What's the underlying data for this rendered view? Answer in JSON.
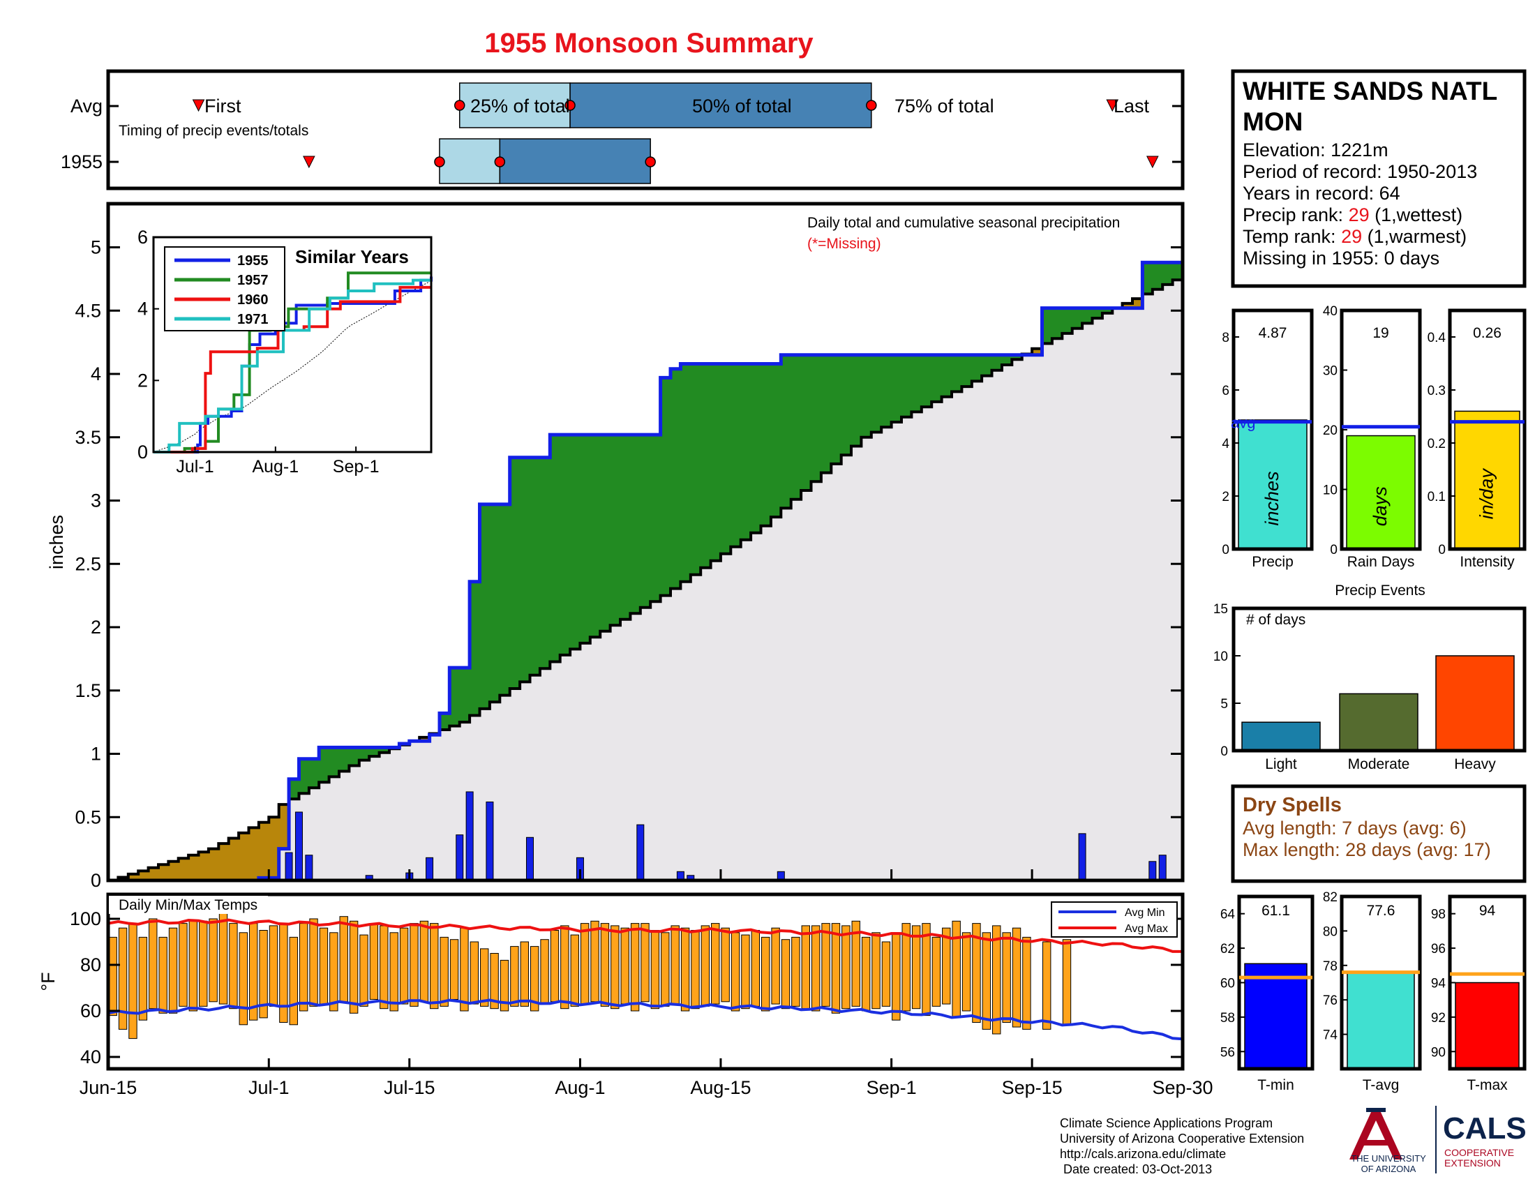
{
  "title": "1955 Monsoon Summary",
  "colors": {
    "title_red": "#e8141c",
    "cum_blue": "#1220e6",
    "avg_black": "#000000",
    "deficit_gold": "#b8860b",
    "surplus_green": "#228b22",
    "area_gray": "#e9e7ea",
    "light_blue": "#add8e6",
    "steel_blue": "#4682b4",
    "daily_bar_blue": "#1220e6",
    "temp_orange": "#ffa31a",
    "min_blue": "#1a2fe0",
    "max_red": "#ee1111",
    "turquoise": "#40e0d0",
    "lawn_green": "#7cfc00",
    "gold": "#ffd700",
    "dry_brown": "#8b4513",
    "light_ev": "#1a7fa8",
    "moderate_ev": "#556b2f",
    "heavy_ev": "#ff4500",
    "avg_line": "#ffa31a",
    "ua_navy": "#0c234b",
    "ua_red": "#ab0520"
  },
  "timing": {
    "avg_label": "Avg",
    "year_label": "1955",
    "first_label": "First",
    "last_label": "Last",
    "q25_label": "25% of total",
    "q50_label": "50% of total",
    "q75_label": "75% of total",
    "subtitle": "Timing of precip events/totals",
    "avg": {
      "first": 9,
      "q25": 35,
      "q50": 46,
      "q75": 76,
      "last": 100
    },
    "year": {
      "first": 20,
      "q25": 33,
      "q50": 39,
      "q75": 54,
      "last": 104
    }
  },
  "main": {
    "ylabel": "inches",
    "annotation": "Daily total and cumulative seasonal precipitation",
    "missing_note": "(*=Missing)",
    "yticks": [
      "0",
      "0.5",
      "1",
      "1.5",
      "2",
      "2.5",
      "3",
      "3.5",
      "4",
      "4.5",
      "5"
    ]
  },
  "inset": {
    "title": "Similar Years",
    "yticks": [
      "0",
      "2",
      "4",
      "6"
    ],
    "xticks": [
      "Jul-1",
      "Aug-1",
      "Sep-1"
    ],
    "legend": [
      {
        "name": "1955",
        "color": "#1220e6"
      },
      {
        "name": "1957",
        "color": "#228b22"
      },
      {
        "name": "1960",
        "color": "#ee1111"
      },
      {
        "name": "1971",
        "color": "#20c0c0"
      }
    ]
  },
  "temps": {
    "title": "Daily Min/Max Temps",
    "ylabel": "°F",
    "yticks": [
      "40",
      "60",
      "80",
      "100"
    ],
    "legend_min": "Avg Min",
    "legend_max": "Avg Max"
  },
  "xaxis": {
    "ticks": [
      {
        "day": 0,
        "label": "Jun-15"
      },
      {
        "day": 16,
        "label": "Jul-1"
      },
      {
        "day": 30,
        "label": "Jul-15"
      },
      {
        "day": 47,
        "label": "Aug-1"
      },
      {
        "day": 61,
        "label": "Aug-15"
      },
      {
        "day": 78,
        "label": "Sep-1"
      },
      {
        "day": 92,
        "label": "Sep-15"
      },
      {
        "day": 107,
        "label": "Sep-30"
      }
    ]
  },
  "station": {
    "name_line1": "WHITE SANDS NATL",
    "name_line2": "MON",
    "elevation": "Elevation: 1221m",
    "period": "Period of record: 1950-2013",
    "years": "Years in record: 64",
    "precip_rank_prefix": "Precip rank: ",
    "precip_rank_value": "29",
    "precip_rank_suffix": " (1,wettest)",
    "temp_rank_prefix": "Temp rank: ",
    "temp_rank_value": "29",
    "temp_rank_suffix": " (1,warmest)",
    "missing": "Missing in 1955: 0 days"
  },
  "stat_bars": [
    {
      "key": "precip",
      "label": "Precip",
      "unit": "inches",
      "value_text": "4.87",
      "value": 4.87,
      "avg": 4.8,
      "ymax": 9,
      "ticks": [
        "0",
        "2",
        "4",
        "6",
        "8"
      ],
      "avg_label": "avg",
      "color": "#40e0d0"
    },
    {
      "key": "raindays",
      "label": "Rain Days",
      "unit": "days",
      "value_text": "19",
      "value": 19,
      "avg": 20.5,
      "ymax": 40,
      "ticks": [
        "0",
        "10",
        "20",
        "30",
        "40"
      ],
      "color": "#7cfc00"
    },
    {
      "key": "intensity",
      "label": "Intensity",
      "unit": "in/day",
      "value_text": "0.26",
      "value": 0.26,
      "avg": 0.24,
      "ymax": 0.45,
      "ticks": [
        "0",
        "0.1",
        "0.2",
        "0.3",
        "0.4"
      ],
      "color": "#ffd700"
    }
  ],
  "events": {
    "title": "Precip Events",
    "ylabel": "# of days",
    "yticks": [
      "0",
      "5",
      "10",
      "15"
    ],
    "categories": [
      "Light",
      "Moderate",
      "Heavy"
    ],
    "values": [
      3,
      6,
      10
    ]
  },
  "dry_spells": {
    "title": "Dry Spells",
    "avg_length": "Avg length: 7 days (avg: 6)",
    "max_length": "Max length: 28 days (avg: 17)"
  },
  "temp_bars": [
    {
      "key": "tmin",
      "label": "T-min",
      "value_text": "61.1",
      "value": 61.1,
      "avg": 60.3,
      "ymin": 55,
      "ymax": 65,
      "ticks": [
        "56",
        "58",
        "60",
        "62",
        "64"
      ],
      "color": "#0000ff"
    },
    {
      "key": "tavg",
      "label": "T-avg",
      "value_text": "77.6",
      "value": 77.6,
      "avg": 77.6,
      "ymin": 72,
      "ymax": 82,
      "ticks": [
        "74",
        "76",
        "78",
        "80",
        "82"
      ],
      "color": "#40e0d0"
    },
    {
      "key": "tmax",
      "label": "T-max",
      "value_text": "94",
      "value": 94,
      "avg": 94.5,
      "ymin": 89,
      "ymax": 99,
      "ticks": [
        "90",
        "92",
        "94",
        "96",
        "98"
      ],
      "color": "#ff0000"
    }
  ],
  "footer": {
    "line1": "Climate Science Applications Program",
    "line2": "University of Arizona Cooperative Extension",
    "line3": "http://cals.arizona.edu/climate",
    "line4": " Date created: 03-Oct-2013",
    "ua_line1": "THE UNIVERSITY",
    "ua_line2": "OF ARIZONA",
    "cals": "CALS",
    "cals_line1": "COOPERATIVE",
    "cals_line2": "EXTENSION"
  },
  "chart_data": [
    {
      "type": "area",
      "title": "Daily total and cumulative seasonal precipitation",
      "xlabel": "",
      "ylabel": "inches",
      "ylim": [
        0,
        5.35
      ],
      "x_range": [
        "Jun-15",
        "Sep-30"
      ],
      "series": [
        {
          "name": "1955",
          "step_x": [
            0,
            15,
            17,
            18,
            19,
            20,
            21,
            29,
            30,
            32,
            33,
            34,
            36,
            37,
            38,
            40,
            41,
            43,
            44,
            45,
            48,
            49,
            51,
            52,
            55,
            56,
            57,
            58,
            67,
            93,
            94,
            103,
            104,
            107
          ],
          "step_y": [
            0,
            0.02,
            0.25,
            0.8,
            0.96,
            0.96,
            1.05,
            1.08,
            1.1,
            1.15,
            1.32,
            1.68,
            2.36,
            2.97,
            2.97,
            3.34,
            3.34,
            3.34,
            3.52,
            3.52,
            3.52,
            3.52,
            3.52,
            3.52,
            3.97,
            4.04,
            4.08,
            4.08,
            4.15,
            4.52,
            4.52,
            4.88,
            4.88,
            4.88
          ]
        },
        {
          "name": "Avg",
          "x": [
            0,
            10,
            16,
            17,
            25,
            35,
            45,
            55,
            65,
            75,
            85,
            92,
            100,
            107
          ],
          "y": [
            0,
            0.25,
            0.5,
            0.6,
            0.95,
            1.25,
            1.78,
            2.25,
            2.8,
            3.5,
            3.9,
            4.2,
            4.52,
            4.78
          ]
        }
      ],
      "daily_bars": {
        "name": "daily total",
        "days": [
          18,
          19,
          20,
          26,
          30,
          32,
          35,
          36,
          38,
          42,
          47,
          53,
          57,
          58,
          67,
          97,
          104,
          105
        ],
        "values": [
          0.22,
          0.54,
          0.2,
          0.04,
          0.06,
          0.18,
          0.36,
          0.7,
          0.62,
          0.34,
          0.18,
          0.44,
          0.07,
          0.04,
          0.07,
          0.37,
          0.15,
          0.2
        ]
      }
    },
    {
      "type": "line",
      "title": "Similar Years",
      "ylim": [
        0,
        6
      ],
      "x_range": [
        "Jun-15",
        "Sep-30"
      ],
      "series": [
        {
          "name": "1955",
          "x": [
            0,
            17,
            18,
            21,
            30,
            34,
            37,
            41,
            47,
            55,
            67,
            93,
            103,
            107
          ],
          "y": [
            0,
            0.2,
            0.8,
            1.0,
            1.15,
            2.4,
            3.0,
            3.3,
            3.6,
            4.1,
            4.15,
            4.5,
            4.8,
            4.9
          ]
        },
        {
          "name": "1957",
          "x": [
            0,
            12,
            20,
            25,
            31,
            37,
            45,
            52,
            67,
            75,
            84,
            107
          ],
          "y": [
            0,
            0.1,
            0.3,
            1.2,
            1.6,
            3.4,
            3.5,
            4.0,
            4.3,
            5.0,
            5.0,
            5.0
          ]
        },
        {
          "name": "1960",
          "x": [
            0,
            15,
            20,
            22,
            32,
            40,
            48,
            58,
            67,
            72,
            80,
            95,
            107
          ],
          "y": [
            0,
            0.1,
            2.2,
            2.8,
            2.8,
            2.9,
            3.4,
            3.5,
            4.0,
            4.2,
            4.2,
            4.6,
            4.6
          ]
        },
        {
          "name": "1971",
          "x": [
            0,
            6,
            10,
            20,
            25,
            34,
            40,
            50,
            60,
            68,
            75,
            85,
            100,
            107
          ],
          "y": [
            0,
            0.2,
            0.8,
            1.0,
            1.2,
            2.4,
            2.8,
            3.4,
            4.0,
            4.3,
            4.5,
            4.7,
            4.8,
            4.8
          ]
        }
      ]
    },
    {
      "type": "bar",
      "title": "Daily Min/Max Temps",
      "ylabel": "°F",
      "ylim": [
        35,
        107
      ],
      "note": "floating bars per day, Jun-15 to Sep-30; missing days have no bar",
      "min_values": [
        58,
        52,
        48,
        56,
        61,
        59,
        59,
        62,
        60,
        62,
        64,
        63,
        61,
        54,
        56,
        57,
        62,
        55,
        54,
        60,
        62,
        63,
        60,
        64,
        59,
        62,
        65,
        61,
        60,
        63,
        62,
        64,
        61,
        62,
        65,
        60,
        63,
        62,
        61,
        60,
        62,
        62,
        60,
        63,
        64,
        61,
        62,
        63,
        64,
        62,
        61,
        63,
        60,
        64,
        61,
        62,
        63,
        60,
        61,
        62,
        63,
        64,
        60,
        61,
        62,
        60,
        63,
        61,
        62,
        61,
        60,
        62,
        59,
        61,
        62,
        60,
        61,
        62,
        56,
        60,
        61,
        58,
        62,
        63,
        57,
        60,
        55,
        52,
        50,
        55,
        53,
        52,
        null,
        52,
        null,
        54,
        null,
        null,
        null,
        null,
        null,
        null,
        null,
        null,
        null,
        null,
        null
      ],
      "max_values": [
        92,
        96,
        98,
        92,
        100,
        92,
        96,
        98,
        99,
        99,
        100,
        103,
        98,
        94,
        98,
        95,
        97,
        98,
        92,
        98,
        100,
        96,
        94,
        101,
        99,
        93,
        98,
        97,
        94,
        96,
        98,
        99,
        98,
        92,
        91,
        96,
        90,
        87,
        85,
        82,
        88,
        90,
        88,
        91,
        95,
        97,
        93,
        98,
        99,
        98,
        97,
        96,
        98,
        98,
        95,
        94,
        97,
        96,
        95,
        97,
        98,
        96,
        94,
        93,
        95,
        92,
        96,
        91,
        92,
        97,
        97,
        98,
        98,
        97,
        99,
        92,
        94,
        90,
        94,
        98,
        97,
        98,
        92,
        96,
        99,
        94,
        98,
        94,
        97,
        94,
        96,
        92,
        null,
        90,
        null,
        91,
        null,
        null,
        null,
        null,
        null,
        null,
        null,
        null,
        null,
        null,
        null
      ],
      "series": [
        {
          "name": "Avg Min",
          "x": [
            0,
            10,
            20,
            30,
            40,
            50,
            60,
            70,
            80,
            90,
            100,
            107
          ],
          "y": [
            59,
            61,
            63,
            64,
            64,
            63,
            62,
            61,
            59,
            56,
            53,
            48
          ]
        },
        {
          "name": "Avg Max",
          "x": [
            0,
            10,
            20,
            30,
            40,
            50,
            60,
            70,
            80,
            90,
            100,
            107
          ],
          "y": [
            98,
            99,
            98,
            97,
            96,
            95,
            95,
            94,
            93,
            91,
            89,
            86
          ]
        }
      ]
    },
    {
      "type": "bar",
      "title": "",
      "categories": [
        "Precip"
      ],
      "values": [
        4.87
      ],
      "avg": 4.8,
      "ylim": [
        0,
        9
      ]
    },
    {
      "type": "bar",
      "title": "",
      "categories": [
        "Rain Days"
      ],
      "values": [
        19
      ],
      "avg": 20.5,
      "ylim": [
        0,
        40
      ]
    },
    {
      "type": "bar",
      "title": "",
      "categories": [
        "Intensity"
      ],
      "values": [
        0.26
      ],
      "avg": 0.24,
      "ylim": [
        0,
        0.45
      ]
    },
    {
      "type": "bar",
      "title": "Precip Events",
      "ylabel": "# of days",
      "categories": [
        "Light",
        "Moderate",
        "Heavy"
      ],
      "values": [
        3,
        6,
        10
      ],
      "ylim": [
        0,
        15
      ]
    },
    {
      "type": "bar",
      "title": "",
      "categories": [
        "T-min"
      ],
      "values": [
        61.1
      ],
      "avg": 60.3,
      "ylim": [
        55,
        65
      ]
    },
    {
      "type": "bar",
      "title": "",
      "categories": [
        "T-avg"
      ],
      "values": [
        77.6
      ],
      "avg": 77.6,
      "ylim": [
        72,
        82
      ]
    },
    {
      "type": "bar",
      "title": "",
      "categories": [
        "T-max"
      ],
      "values": [
        94
      ],
      "avg": 94.5,
      "ylim": [
        89,
        99
      ]
    }
  ]
}
